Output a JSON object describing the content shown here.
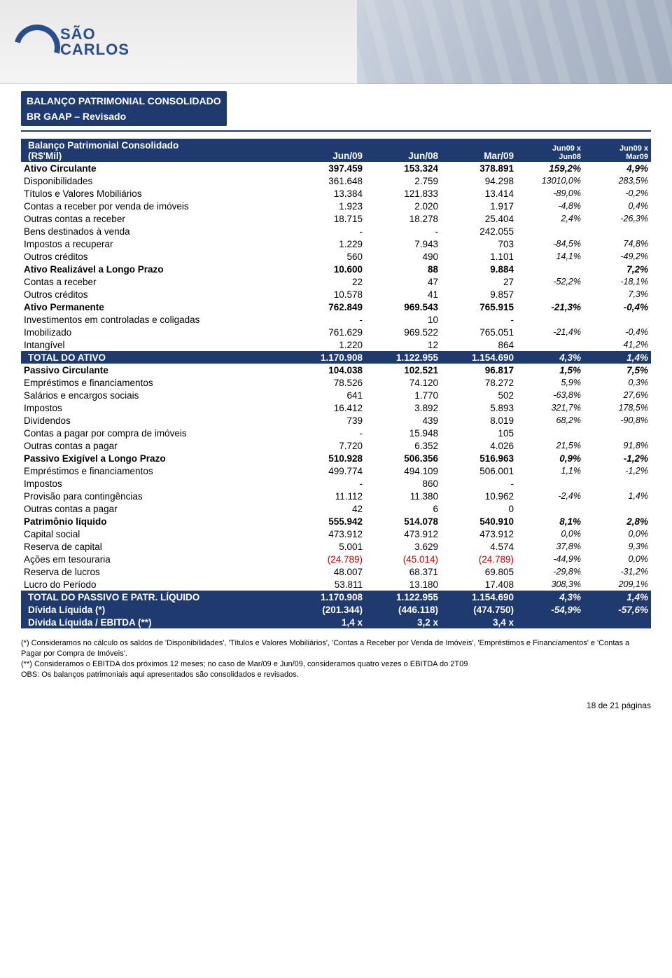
{
  "logo": {
    "line1": "SÃO",
    "line2": "CARLOS"
  },
  "colors": {
    "brand": "#1f3a6e",
    "negative": "#c00000",
    "white": "#ffffff"
  },
  "section": {
    "title": "BALANÇO PATRIMONIAL CONSOLIDADO",
    "subtitle": "BR GAAP – Revisado"
  },
  "header": {
    "col_title_l1": "Balanço Patrimonial Consolidado",
    "col_title_l2": "(R$'Mil)",
    "c1": "Jun/09",
    "c2": "Jun/08",
    "c3": "Mar/09",
    "c4_l1": "Jun09 x",
    "c4_l2": "Jun08",
    "c5_l1": "Jun09 x",
    "c5_l2": "Mar09"
  },
  "rows": [
    {
      "t": "grp",
      "label": "Ativo Circulante",
      "v1": "397.459",
      "v2": "153.324",
      "v3": "378.891",
      "p1": "159,2%",
      "p2": "4,9%"
    },
    {
      "t": "line",
      "label": "Disponibilidades",
      "v1": "361.648",
      "v2": "2.759",
      "v3": "94.298",
      "p1": "13010,0%",
      "p2": "283,5%"
    },
    {
      "t": "line",
      "label": "Títulos e Valores Mobiliários",
      "v1": "13.384",
      "v2": "121.833",
      "v3": "13.414",
      "p1": "-89,0%",
      "p2": "-0,2%"
    },
    {
      "t": "line",
      "label": "Contas a receber por venda de imóveis",
      "v1": "1.923",
      "v2": "2.020",
      "v3": "1.917",
      "p1": "-4,8%",
      "p2": "0,4%"
    },
    {
      "t": "line",
      "label": "Outras contas a receber",
      "v1": "18.715",
      "v2": "18.278",
      "v3": "25.404",
      "p1": "2,4%",
      "p2": "-26,3%"
    },
    {
      "t": "line",
      "label": "Bens destinados à venda",
      "v1": "-",
      "v2": "-",
      "v3": "242.055",
      "p1": "",
      "p2": ""
    },
    {
      "t": "line",
      "label": "Impostos a recuperar",
      "v1": "1.229",
      "v2": "7.943",
      "v3": "703",
      "p1": "-84,5%",
      "p2": "74,8%"
    },
    {
      "t": "line",
      "label": "Outros créditos",
      "v1": "560",
      "v2": "490",
      "v3": "1.101",
      "p1": "14,1%",
      "p2": "-49,2%"
    },
    {
      "t": "grp",
      "label": "Ativo Realizável a Longo Prazo",
      "v1": "10.600",
      "v2": "88",
      "v3": "9.884",
      "p1": "",
      "p2": "7,2%"
    },
    {
      "t": "line",
      "label": "Contas a receber",
      "v1": "22",
      "v2": "47",
      "v3": "27",
      "p1": "-52,2%",
      "p2": "-18,1%"
    },
    {
      "t": "line",
      "label": "Outros créditos",
      "v1": "10.578",
      "v2": "41",
      "v3": "9.857",
      "p1": "",
      "p2": "7,3%"
    },
    {
      "t": "grp",
      "label": "Ativo Permanente",
      "v1": "762.849",
      "v2": "969.543",
      "v3": "765.915",
      "p1": "-21,3%",
      "p2": "-0,4%"
    },
    {
      "t": "line",
      "label": "Investimentos em controladas e coligadas",
      "v1": "-",
      "v2": "10",
      "v3": "-",
      "p1": "",
      "p2": ""
    },
    {
      "t": "line",
      "label": "Imobilizado",
      "v1": "761.629",
      "v2": "969.522",
      "v3": "765.051",
      "p1": "-21,4%",
      "p2": "-0,4%"
    },
    {
      "t": "line",
      "label": "Intangível",
      "v1": "1.220",
      "v2": "12",
      "v3": "864",
      "p1": "",
      "p2": "41,2%"
    },
    {
      "t": "total",
      "label": "TOTAL DO ATIVO",
      "v1": "1.170.908",
      "v2": "1.122.955",
      "v3": "1.154.690",
      "p1": "4,3%",
      "p2": "1,4%"
    },
    {
      "t": "grp",
      "label": "Passivo Circulante",
      "v1": "104.038",
      "v2": "102.521",
      "v3": "96.817",
      "p1": "1,5%",
      "p2": "7,5%"
    },
    {
      "t": "line",
      "label": "Empréstimos e financiamentos",
      "v1": "78.526",
      "v2": "74.120",
      "v3": "78.272",
      "p1": "5,9%",
      "p2": "0,3%"
    },
    {
      "t": "line",
      "label": "Salários e encargos sociais",
      "v1": "641",
      "v2": "1.770",
      "v3": "502",
      "p1": "-63,8%",
      "p2": "27,6%"
    },
    {
      "t": "line",
      "label": "Impostos",
      "v1": "16.412",
      "v2": "3.892",
      "v3": "5.893",
      "p1": "321,7%",
      "p2": "178,5%"
    },
    {
      "t": "line",
      "label": "Dividendos",
      "v1": "739",
      "v2": "439",
      "v3": "8.019",
      "p1": "68,2%",
      "p2": "-90,8%"
    },
    {
      "t": "line",
      "label": "Contas a pagar por compra de imóveis",
      "v1": "-",
      "v2": "15.948",
      "v3": "105",
      "p1": "",
      "p2": ""
    },
    {
      "t": "line",
      "label": "Outras contas a pagar",
      "v1": "7.720",
      "v2": "6.352",
      "v3": "4.026",
      "p1": "21,5%",
      "p2": "91,8%"
    },
    {
      "t": "grp",
      "label": "Passivo Exigível a Longo Prazo",
      "v1": "510.928",
      "v2": "506.356",
      "v3": "516.963",
      "p1": "0,9%",
      "p2": "-1,2%"
    },
    {
      "t": "line",
      "label": "Empréstimos e financiamentos",
      "v1": "499.774",
      "v2": "494.109",
      "v3": "506.001",
      "p1": "1,1%",
      "p2": "-1,2%"
    },
    {
      "t": "line",
      "label": "Impostos",
      "v1": "-",
      "v2": "860",
      "v3": "-",
      "p1": "",
      "p2": ""
    },
    {
      "t": "line",
      "label": "Provisão para contingências",
      "v1": "11.112",
      "v2": "11.380",
      "v3": "10.962",
      "p1": "-2,4%",
      "p2": "1,4%"
    },
    {
      "t": "line",
      "label": "Outras contas a pagar",
      "v1": "42",
      "v2": "6",
      "v3": "0",
      "p1": "",
      "p2": ""
    },
    {
      "t": "grp",
      "label": "Patrimônio líquido",
      "v1": "555.942",
      "v2": "514.078",
      "v3": "540.910",
      "p1": "8,1%",
      "p2": "2,8%"
    },
    {
      "t": "line",
      "label": "Capital social",
      "v1": "473.912",
      "v2": "473.912",
      "v3": "473.912",
      "p1": "0,0%",
      "p2": "0,0%"
    },
    {
      "t": "line",
      "label": "Reserva de capital",
      "v1": "5.001",
      "v2": "3.629",
      "v3": "4.574",
      "p1": "37,8%",
      "p2": "9,3%"
    },
    {
      "t": "line",
      "label": "Ações em tesouraria",
      "v1": "(24.789)",
      "v1neg": true,
      "v2": "(45.014)",
      "v2neg": true,
      "v3": "(24.789)",
      "v3neg": true,
      "p1": "-44,9%",
      "p2": "0,0%"
    },
    {
      "t": "line",
      "label": "Reserva de lucros",
      "v1": "48.007",
      "v2": "68.371",
      "v3": "69.805",
      "p1": "-29,8%",
      "p2": "-31,2%"
    },
    {
      "t": "line",
      "label": "Lucro do Período",
      "v1": "53.811",
      "v2": "13.180",
      "v3": "17.408",
      "p1": "308,3%",
      "p2": "209,1%"
    },
    {
      "t": "total",
      "label": "TOTAL DO PASSIVO E PATR. LÍQUIDO",
      "v1": "1.170.908",
      "v2": "1.122.955",
      "v3": "1.154.690",
      "p1": "4,3%",
      "p2": "1,4%"
    },
    {
      "t": "total",
      "label": "Dívida Líquida (*)",
      "v1": "(201.344)",
      "v2": "(446.118)",
      "v3": "(474.750)",
      "p1": "-54,9%",
      "p2": "-57,6%"
    },
    {
      "t": "total",
      "label": "Dívida Líquida / EBITDA (**)",
      "v1": "1,4 x",
      "v2": "3,2 x",
      "v3": "3,4 x",
      "p1": "",
      "p2": ""
    }
  ],
  "footnotes": {
    "f1": "(*) Consideramos no cálculo os saldos de 'Disponibilidades', 'Títulos e Valores Mobiliários', 'Contas a Receber por Venda de Imóveis', 'Empréstimos e Financiamentos' e 'Contas a Pagar por Compra de Imóveis'.",
    "f2": "(**) Consideramos o EBITDA dos próximos 12 meses; no caso de Mar/09 e Jun/09, consideramos quatro vezes o EBITDA do 2T09",
    "f3": "OBS: Os balanços patrimoniais aqui apresentados são consolidados e revisados."
  },
  "pagenum": "18 de 21 páginas"
}
